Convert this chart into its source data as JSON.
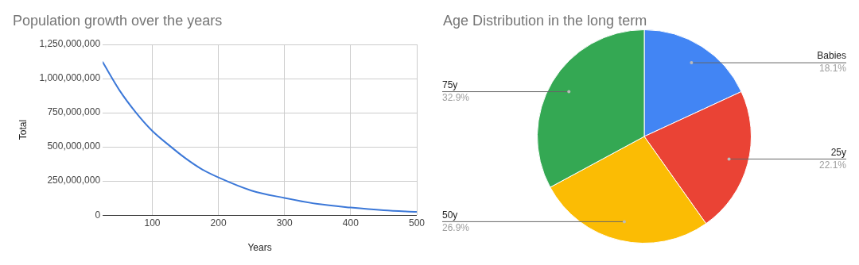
{
  "chart_data": [
    {
      "type": "line",
      "title": "Population growth over the years",
      "xlabel": "Years",
      "ylabel": "Total",
      "x": [
        25,
        50,
        75,
        100,
        125,
        150,
        175,
        200,
        250,
        300,
        350,
        400,
        450,
        500
      ],
      "series": [
        {
          "color": "#3c78d8",
          "values": [
            1120000000,
            917000000,
            753000000,
            617000000,
            513000000,
            417000000,
            336000000,
            276000000,
            180000000,
            126000000,
            82000000,
            56000000,
            36000000,
            24000000
          ]
        }
      ],
      "xlim": [
        25,
        500
      ],
      "xticks": [
        100,
        200,
        300,
        400,
        500
      ],
      "ylim": [
        0,
        1250000000
      ],
      "yticks": [
        {
          "value": 0,
          "label": "0"
        },
        {
          "value": 250000000,
          "label": "250,000,000"
        },
        {
          "value": 500000000,
          "label": "500,000,000"
        },
        {
          "value": 750000000,
          "label": "750,000,000"
        },
        {
          "value": 1000000000,
          "label": "1,000,000,000"
        },
        {
          "value": 1250000000,
          "label": "1,250,000,000"
        }
      ],
      "grid": true,
      "legend": false,
      "marker": "none",
      "line_style": "solid"
    },
    {
      "type": "pie",
      "title": "Age Distribution in the long term",
      "categories": [
        "Babies",
        "25y",
        "50y",
        "75y"
      ],
      "values": [
        18.1,
        22.1,
        26.9,
        32.9
      ],
      "colors": [
        "#4285f4",
        "#ea4335",
        "#fbbc04",
        "#34a853"
      ],
      "value_labels": [
        "18.1%",
        "22.1%",
        "26.9%",
        "32.9%"
      ],
      "legend": false
    }
  ]
}
